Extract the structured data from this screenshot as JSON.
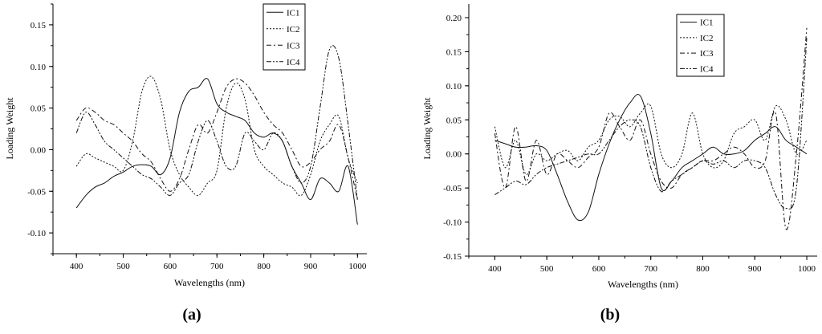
{
  "chart_data": [
    {
      "type": "line",
      "panel_label": "(a)",
      "xlabel": "Wavelengths (nm)",
      "ylabel": "Loading Weight",
      "xlim": [
        350,
        1020
      ],
      "ylim": [
        -0.125,
        0.175
      ],
      "xticks": [
        400,
        500,
        600,
        700,
        800,
        900,
        1000
      ],
      "yticks": [
        -0.1,
        -0.05,
        0.0,
        0.05,
        0.1,
        0.15
      ],
      "ytick_labels": [
        "-0.10",
        "-0.05",
        "0.00",
        "0.05",
        "0.10",
        "0.15"
      ],
      "grid": false,
      "legend": "top-center",
      "series": [
        {
          "name": "IC1",
          "style": "solid",
          "x": [
            400,
            420,
            440,
            460,
            480,
            500,
            520,
            540,
            560,
            580,
            600,
            620,
            640,
            660,
            680,
            700,
            720,
            740,
            760,
            780,
            800,
            820,
            840,
            860,
            880,
            900,
            920,
            940,
            960,
            980,
            1000
          ],
          "y": [
            -0.07,
            -0.055,
            -0.045,
            -0.04,
            -0.032,
            -0.027,
            -0.02,
            -0.018,
            -0.02,
            -0.03,
            -0.01,
            0.045,
            0.07,
            0.075,
            0.085,
            0.055,
            0.045,
            0.04,
            0.035,
            0.02,
            0.015,
            0.02,
            0.01,
            -0.02,
            -0.04,
            -0.06,
            -0.035,
            -0.04,
            -0.05,
            -0.02,
            -0.09
          ]
        },
        {
          "name": "IC2",
          "style": "dot",
          "x": [
            400,
            420,
            440,
            460,
            480,
            500,
            520,
            540,
            560,
            580,
            600,
            620,
            640,
            660,
            680,
            700,
            720,
            740,
            760,
            780,
            800,
            820,
            840,
            860,
            880,
            900,
            920,
            940,
            960,
            980,
            1000
          ],
          "y": [
            -0.02,
            -0.005,
            -0.01,
            -0.015,
            -0.02,
            -0.025,
            0.01,
            0.07,
            0.088,
            0.06,
            0.0,
            -0.03,
            -0.045,
            -0.055,
            -0.04,
            -0.025,
            0.05,
            0.08,
            0.06,
            0.0,
            -0.02,
            -0.03,
            -0.04,
            -0.045,
            -0.055,
            -0.03,
            0.01,
            0.03,
            0.04,
            -0.01,
            -0.04
          ]
        },
        {
          "name": "IC3",
          "style": "dashdot",
          "x": [
            400,
            420,
            440,
            460,
            480,
            500,
            520,
            540,
            560,
            580,
            600,
            620,
            640,
            660,
            680,
            700,
            720,
            740,
            760,
            780,
            800,
            820,
            840,
            860,
            880,
            900,
            920,
            940,
            960,
            980,
            1000
          ],
          "y": [
            0.035,
            0.05,
            0.045,
            0.035,
            0.03,
            0.02,
            0.01,
            -0.005,
            -0.015,
            -0.035,
            -0.05,
            -0.035,
            0.0,
            0.03,
            0.02,
            0.045,
            0.075,
            0.085,
            0.08,
            0.065,
            0.045,
            0.03,
            0.02,
            0.0,
            -0.02,
            -0.015,
            0.0,
            0.01,
            0.03,
            -0.01,
            -0.06
          ]
        },
        {
          "name": "IC4",
          "style": "dashdotdot",
          "x": [
            400,
            420,
            440,
            460,
            480,
            500,
            520,
            540,
            560,
            580,
            600,
            620,
            640,
            660,
            680,
            700,
            720,
            740,
            760,
            780,
            800,
            820,
            840,
            860,
            880,
            900,
            920,
            940,
            960,
            980,
            1000
          ],
          "y": [
            0.02,
            0.045,
            0.03,
            0.01,
            0.0,
            -0.01,
            -0.02,
            -0.03,
            -0.035,
            -0.045,
            -0.055,
            -0.04,
            -0.03,
            0.01,
            0.035,
            0.01,
            -0.02,
            -0.02,
            0.02,
            0.01,
            0.0,
            0.02,
            0.01,
            -0.02,
            -0.04,
            -0.02,
            0.05,
            0.12,
            0.11,
            0.03,
            -0.06
          ]
        }
      ]
    },
    {
      "type": "line",
      "panel_label": "(b)",
      "xlabel": "Wavelengths (nm)",
      "ylabel": "Loading Weight",
      "xlim": [
        350,
        1020
      ],
      "ylim": [
        -0.15,
        0.22
      ],
      "xticks": [
        400,
        500,
        600,
        700,
        800,
        900,
        1000
      ],
      "yticks": [
        -0.15,
        -0.1,
        -0.05,
        0.0,
        0.05,
        0.1,
        0.15,
        0.2
      ],
      "ytick_labels": [
        "-0.15",
        "-0.10",
        "-0.05",
        "0.00",
        "0.05",
        "0.10",
        "0.15",
        "0.20"
      ],
      "grid": false,
      "legend": "top-right",
      "series": [
        {
          "name": "IC1",
          "style": "solid",
          "x": [
            400,
            420,
            440,
            460,
            480,
            500,
            520,
            540,
            560,
            580,
            600,
            620,
            640,
            660,
            680,
            700,
            720,
            740,
            760,
            780,
            800,
            820,
            840,
            860,
            880,
            900,
            920,
            940,
            960,
            980,
            1000
          ],
          "y": [
            0.02,
            0.015,
            0.01,
            0.01,
            0.012,
            0.005,
            -0.03,
            -0.07,
            -0.097,
            -0.085,
            -0.03,
            0.015,
            0.05,
            0.075,
            0.085,
            0.03,
            -0.05,
            -0.04,
            -0.02,
            -0.01,
            0.0,
            0.01,
            0.0,
            0.0,
            0.005,
            0.02,
            0.03,
            0.04,
            0.02,
            0.01,
            0.0
          ]
        },
        {
          "name": "IC2",
          "style": "dot",
          "x": [
            400,
            420,
            440,
            460,
            480,
            500,
            520,
            540,
            560,
            580,
            600,
            620,
            640,
            660,
            680,
            700,
            720,
            740,
            760,
            780,
            800,
            820,
            840,
            860,
            880,
            900,
            920,
            940,
            960,
            980,
            1000
          ],
          "y": [
            0.04,
            -0.02,
            0.02,
            -0.03,
            0.0,
            -0.01,
            0.0,
            0.005,
            -0.01,
            0.01,
            0.02,
            0.05,
            0.055,
            0.04,
            0.06,
            0.07,
            0.0,
            -0.02,
            0.0,
            0.06,
            0.0,
            -0.02,
            -0.01,
            0.03,
            0.04,
            0.05,
            0.02,
            0.07,
            0.05,
            0.0,
            0.02
          ]
        },
        {
          "name": "IC3",
          "style": "dashdot",
          "x": [
            400,
            420,
            440,
            460,
            480,
            500,
            520,
            540,
            560,
            580,
            600,
            620,
            640,
            660,
            680,
            700,
            720,
            740,
            760,
            780,
            800,
            820,
            840,
            860,
            880,
            900,
            920,
            940,
            960,
            980,
            1000
          ],
          "y": [
            0.03,
            -0.05,
            0.04,
            -0.04,
            0.02,
            -0.03,
            0.0,
            -0.01,
            -0.02,
            -0.005,
            0.01,
            0.06,
            0.04,
            0.02,
            0.05,
            0.0,
            -0.04,
            -0.05,
            -0.03,
            -0.02,
            -0.01,
            -0.01,
            0.0,
            0.01,
            0.0,
            -0.02,
            -0.01,
            0.06,
            -0.11,
            0.0,
            0.185
          ]
        },
        {
          "name": "IC4",
          "style": "dashdotdot",
          "x": [
            400,
            420,
            440,
            460,
            480,
            500,
            520,
            540,
            560,
            580,
            600,
            620,
            640,
            660,
            680,
            700,
            720,
            740,
            760,
            780,
            800,
            820,
            840,
            860,
            880,
            900,
            920,
            940,
            960,
            980,
            1000
          ],
          "y": [
            -0.06,
            -0.05,
            -0.04,
            -0.045,
            -0.03,
            -0.02,
            -0.015,
            -0.01,
            -0.005,
            0.0,
            0.0,
            0.02,
            0.04,
            0.05,
            0.04,
            -0.02,
            -0.055,
            -0.04,
            -0.03,
            -0.02,
            -0.01,
            -0.015,
            -0.01,
            -0.02,
            -0.01,
            -0.01,
            -0.02,
            -0.06,
            -0.08,
            -0.05,
            0.17
          ]
        }
      ]
    }
  ]
}
